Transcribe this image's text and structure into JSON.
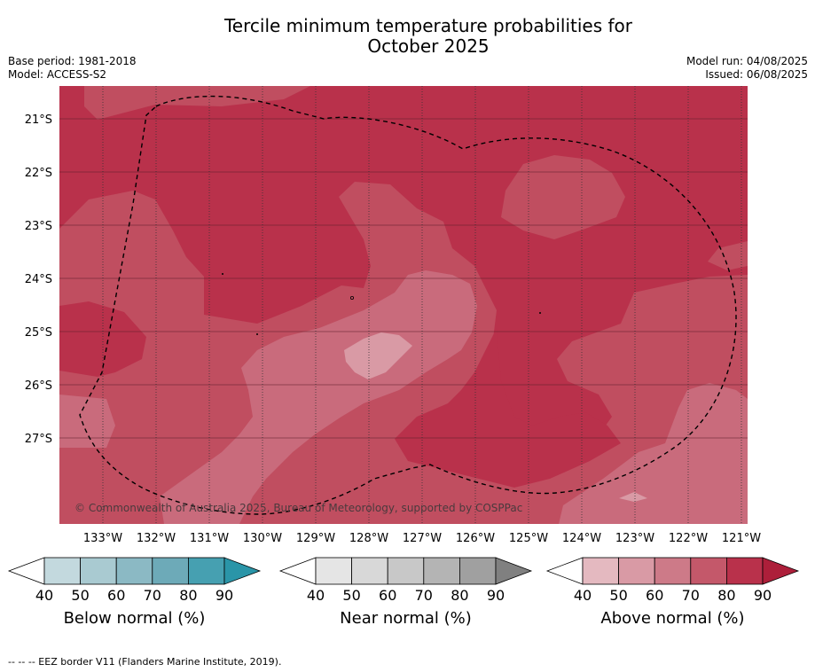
{
  "title_line1": "Tercile minimum temperature probabilities for",
  "title_line2": "October 2025",
  "meta_left": [
    "Base period: 1981-2018",
    "Model: ACCESS-S2"
  ],
  "meta_right": [
    "Model run: 04/08/2025",
    "Issued: 06/08/2025"
  ],
  "map": {
    "lat_labels": [
      "21°S",
      "22°S",
      "23°S",
      "24°S",
      "25°S",
      "26°S",
      "27°S"
    ],
    "lon_labels": [
      "133°W",
      "132°W",
      "131°W",
      "130°W",
      "129°W",
      "128°W",
      "127°W",
      "126°W",
      "125°W",
      "124°W",
      "123°W",
      "122°W",
      "121°W"
    ],
    "copyright": "© Commonwealth of Australia 2025, Bureau of Meteorology, supported by COSPPac",
    "fill_colors": {
      "above_50_60": "#d99aa5",
      "above_60_70": "#c96b7c",
      "above_70_80": "#c04e60",
      "above_80_90": "#b9314b"
    }
  },
  "colorbars": [
    {
      "name": "below",
      "title": "Below normal (%)",
      "ticks": [
        "40",
        "50",
        "60",
        "70",
        "80",
        "90"
      ],
      "colors": [
        "#c3d9de",
        "#a9cad1",
        "#8bb9c4",
        "#6daab8",
        "#46a0b1",
        "#2a95a8"
      ]
    },
    {
      "name": "near",
      "title": "Near normal (%)",
      "ticks": [
        "40",
        "50",
        "60",
        "70",
        "80",
        "90"
      ],
      "colors": [
        "#e5e5e5",
        "#d8d8d8",
        "#c8c8c8",
        "#b4b4b4",
        "#a0a0a0",
        "#808080"
      ]
    },
    {
      "name": "above",
      "title": "Above normal (%)",
      "ticks": [
        "40",
        "50",
        "60",
        "70",
        "80",
        "90"
      ],
      "colors": [
        "#e4b9c0",
        "#d99aa5",
        "#cd7a88",
        "#c4586a",
        "#b9314b",
        "#ad1f3a"
      ]
    }
  ],
  "footer": "--  --  -- EEZ border V11 (Flanders Marine Institute, 2019)."
}
